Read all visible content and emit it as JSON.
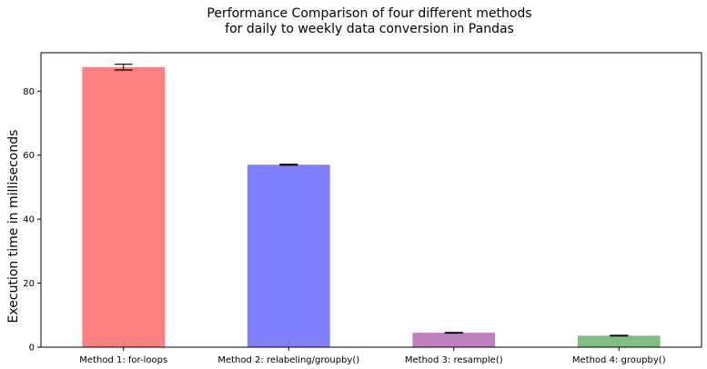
{
  "chart_data": {
    "type": "bar",
    "title_lines": [
      "Performance Comparison of four different methods",
      "for daily to weekly data conversion in Pandas"
    ],
    "xlabel": "",
    "ylabel": "Execution time in milliseconds",
    "categories": [
      "Method 1: for-loops",
      "Method 2: relabeling/groupby()",
      "Method 3: resample()",
      "Method 4: groupby()"
    ],
    "values": [
      87.5,
      57.0,
      4.5,
      3.6
    ],
    "errors": [
      0.9,
      0.15,
      0.1,
      0.1
    ],
    "colors": [
      "#ff8080",
      "#8080ff",
      "#bf80bf",
      "#80bf80"
    ],
    "ylim": [
      0,
      92
    ],
    "yticks": [
      0,
      20,
      40,
      60,
      80
    ],
    "grid": false,
    "legend": "none"
  }
}
